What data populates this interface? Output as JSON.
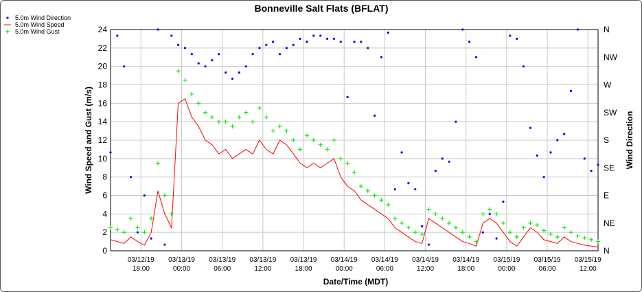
{
  "chart_data": {
    "type": "line",
    "title": "Bonneville Salt Flats (BFLAT)",
    "xlabel": "Date/Time (MDT)",
    "ylabel": "Wind Speed and Gust (m/s)",
    "y2label": "Wind Direction",
    "ylim": [
      0,
      24
    ],
    "yticks": [
      0,
      2,
      4,
      6,
      8,
      10,
      12,
      14,
      16,
      18,
      20,
      22,
      24
    ],
    "y2ticks": [
      "N",
      "NE",
      "E",
      "SE",
      "S",
      "SW",
      "W",
      "NW",
      "N"
    ],
    "xlim": [
      "03/12/19 13:30",
      "03/15/19 13:30"
    ],
    "xticks": [
      {
        "date": "03/12/19",
        "time": "18:00"
      },
      {
        "date": "03/13/19",
        "time": "00:00"
      },
      {
        "date": "03/13/19",
        "time": "06:00"
      },
      {
        "date": "03/13/19",
        "time": "12:00"
      },
      {
        "date": "03/13/19",
        "time": "18:00"
      },
      {
        "date": "03/14/19",
        "time": "00:00"
      },
      {
        "date": "03/14/19",
        "time": "06:00"
      },
      {
        "date": "03/14/19",
        "time": "12:00"
      },
      {
        "date": "03/14/19",
        "time": "18:00"
      },
      {
        "date": "03/15/19",
        "time": "00:00"
      },
      {
        "date": "03/15/19",
        "time": "06:00"
      },
      {
        "date": "03/15/19",
        "time": "12:00"
      }
    ],
    "grid": true,
    "legend_position": "top-left",
    "series": [
      {
        "name": "5.0m Wind Direction",
        "color": "#0000ff",
        "marker": "dot",
        "axis": "right",
        "unit": "degrees",
        "x_hours": [
          0,
          1,
          2,
          3,
          4,
          5,
          6,
          7,
          8,
          9,
          10,
          11,
          12,
          13,
          14,
          15,
          16,
          17,
          18,
          19,
          20,
          21,
          22,
          23,
          24,
          25,
          26,
          27,
          28,
          29,
          30,
          31,
          32,
          33,
          34,
          35,
          36,
          37,
          38,
          39,
          40,
          41,
          42,
          43,
          44,
          45,
          46,
          47,
          48,
          49,
          50,
          51,
          52,
          53,
          54,
          55,
          56,
          57,
          58,
          59,
          60,
          61,
          62,
          63,
          64,
          65,
          66,
          67,
          68,
          69,
          70,
          71,
          72
        ],
        "values": [
          160,
          350,
          300,
          120,
          30,
          90,
          20,
          360,
          10,
          350,
          335,
          330,
          320,
          305,
          300,
          310,
          320,
          290,
          280,
          290,
          300,
          320,
          330,
          335,
          340,
          320,
          330,
          335,
          345,
          340,
          350,
          350,
          345,
          345,
          340,
          250,
          340,
          340,
          330,
          220,
          315,
          355,
          100,
          160,
          110,
          100,
          40,
          10,
          130,
          150,
          145,
          210,
          360,
          340,
          315,
          30,
          60,
          20,
          80,
          350,
          345,
          300,
          200,
          155,
          120,
          160,
          180,
          190,
          260,
          360,
          150,
          130,
          140
        ]
      },
      {
        "name": "5.0m Wind Speed",
        "color": "#ff0000",
        "marker": "line",
        "axis": "left",
        "unit": "m/s",
        "x_hours": [
          0,
          1,
          2,
          3,
          4,
          5,
          6,
          7,
          8,
          9,
          10,
          11,
          12,
          13,
          14,
          15,
          16,
          17,
          18,
          19,
          20,
          21,
          22,
          23,
          24,
          25,
          26,
          27,
          28,
          29,
          30,
          31,
          32,
          33,
          34,
          35,
          36,
          37,
          38,
          39,
          40,
          41,
          42,
          43,
          44,
          45,
          46,
          47,
          48,
          49,
          50,
          51,
          52,
          53,
          54,
          55,
          56,
          57,
          58,
          59,
          60,
          61,
          62,
          63,
          64,
          65,
          66,
          67,
          68,
          69,
          70,
          71,
          72
        ],
        "values": [
          1.2,
          1.0,
          0.8,
          1.5,
          1.0,
          0.6,
          2.0,
          6.5,
          4.0,
          2.5,
          16.0,
          16.5,
          14.5,
          13.5,
          12.0,
          11.5,
          10.5,
          11.0,
          10.0,
          10.5,
          11.0,
          10.5,
          12.0,
          11.0,
          10.5,
          12.0,
          11.5,
          10.5,
          9.5,
          9.0,
          9.5,
          9.0,
          9.5,
          10.0,
          8.0,
          7.0,
          6.5,
          5.5,
          5.0,
          4.5,
          4.0,
          3.5,
          2.5,
          2.0,
          1.5,
          1.0,
          0.8,
          3.5,
          3.0,
          2.5,
          2.0,
          1.5,
          1.0,
          0.8,
          0.5,
          3.0,
          3.5,
          3.0,
          2.0,
          1.0,
          0.5,
          1.5,
          2.5,
          2.0,
          1.2,
          1.0,
          0.8,
          1.5,
          1.0,
          0.8,
          0.6,
          0.5,
          0.4
        ]
      },
      {
        "name": "5.0m Wind Gust",
        "color": "#00ee00",
        "marker": "plus",
        "axis": "left",
        "unit": "m/s",
        "x_hours": [
          0,
          1,
          2,
          3,
          4,
          5,
          6,
          7,
          8,
          9,
          10,
          11,
          12,
          13,
          14,
          15,
          16,
          17,
          18,
          19,
          20,
          21,
          22,
          23,
          24,
          25,
          26,
          27,
          28,
          29,
          30,
          31,
          32,
          33,
          34,
          35,
          36,
          37,
          38,
          39,
          40,
          41,
          42,
          43,
          44,
          45,
          46,
          47,
          48,
          49,
          50,
          51,
          52,
          53,
          54,
          55,
          56,
          57,
          58,
          59,
          60,
          61,
          62,
          63,
          64,
          65,
          66,
          67,
          68,
          69,
          70,
          71,
          72
        ],
        "values": [
          2.5,
          2.3,
          2.0,
          3.5,
          2.5,
          2.0,
          3.5,
          9.5,
          6.0,
          4.0,
          19.5,
          18.5,
          17.0,
          16.0,
          15.0,
          14.5,
          14.0,
          14.0,
          13.5,
          14.5,
          15.0,
          14.0,
          15.5,
          14.5,
          13.0,
          13.5,
          13.0,
          12.0,
          11.0,
          12.5,
          12.0,
          11.5,
          11.0,
          12.0,
          10.0,
          9.5,
          8.5,
          7.0,
          6.5,
          6.0,
          5.5,
          5.0,
          3.5,
          3.0,
          2.5,
          2.0,
          1.8,
          4.5,
          4.0,
          3.5,
          3.0,
          2.5,
          2.0,
          1.5,
          1.0,
          4.0,
          4.5,
          4.0,
          3.0,
          2.0,
          1.5,
          2.5,
          3.0,
          2.8,
          2.2,
          1.8,
          1.5,
          2.5,
          2.0,
          1.6,
          1.4,
          1.2,
          1.0
        ]
      }
    ]
  }
}
